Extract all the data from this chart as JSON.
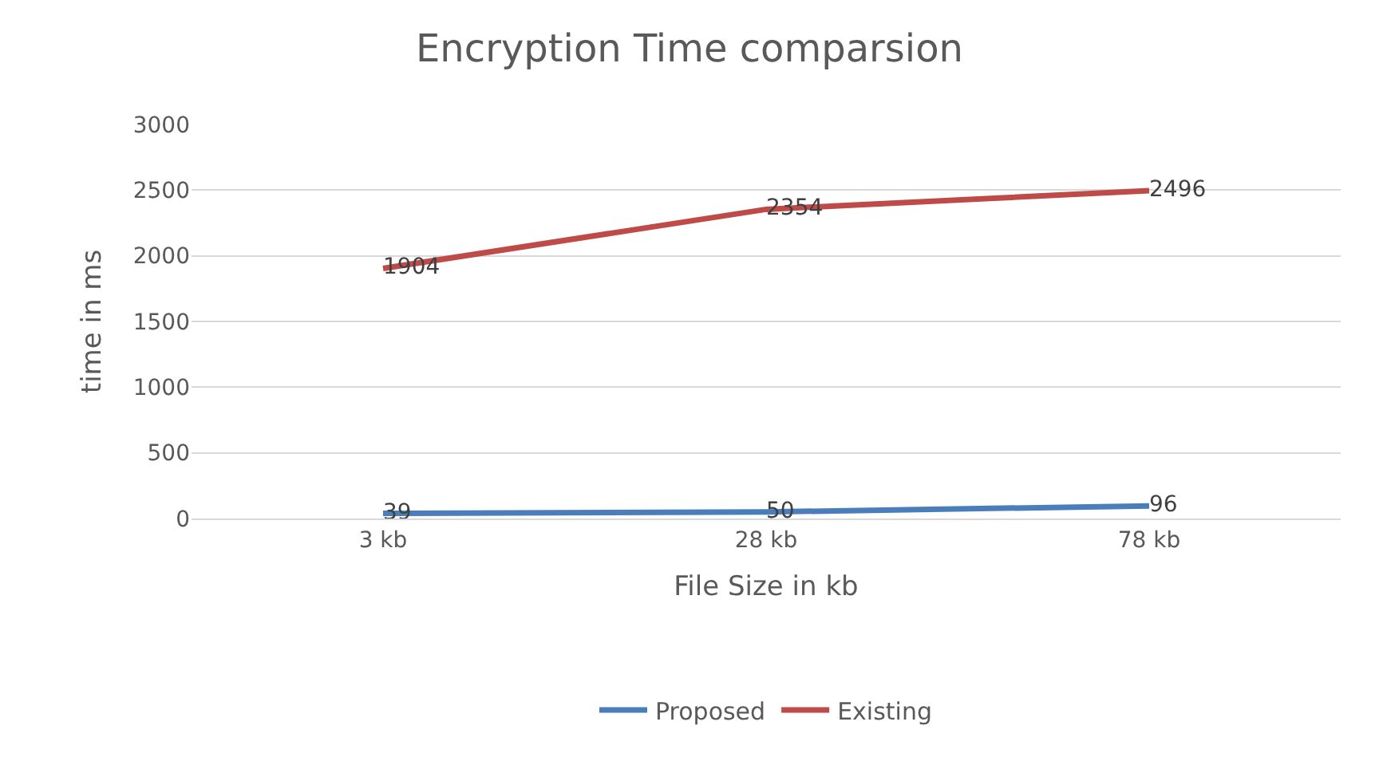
{
  "chart_data": {
    "type": "line",
    "title": "Encryption Time comparsion",
    "xlabel": "File Size in kb",
    "ylabel": "time in ms",
    "categories": [
      "3 kb",
      "28 kb",
      "78 kb"
    ],
    "series": [
      {
        "name": "Proposed",
        "color": "#4a7ebb",
        "values": [
          39,
          50,
          96
        ]
      },
      {
        "name": "Existing",
        "color": "#be4b48",
        "values": [
          1904,
          2354,
          2496
        ]
      }
    ],
    "ylim": [
      0,
      3000
    ],
    "yticks": [
      0,
      500,
      1000,
      1500,
      2000,
      2500,
      3000
    ],
    "grid": "y",
    "legend": "bottom",
    "data_labels": true,
    "marker": "none",
    "line_style": "solid"
  }
}
